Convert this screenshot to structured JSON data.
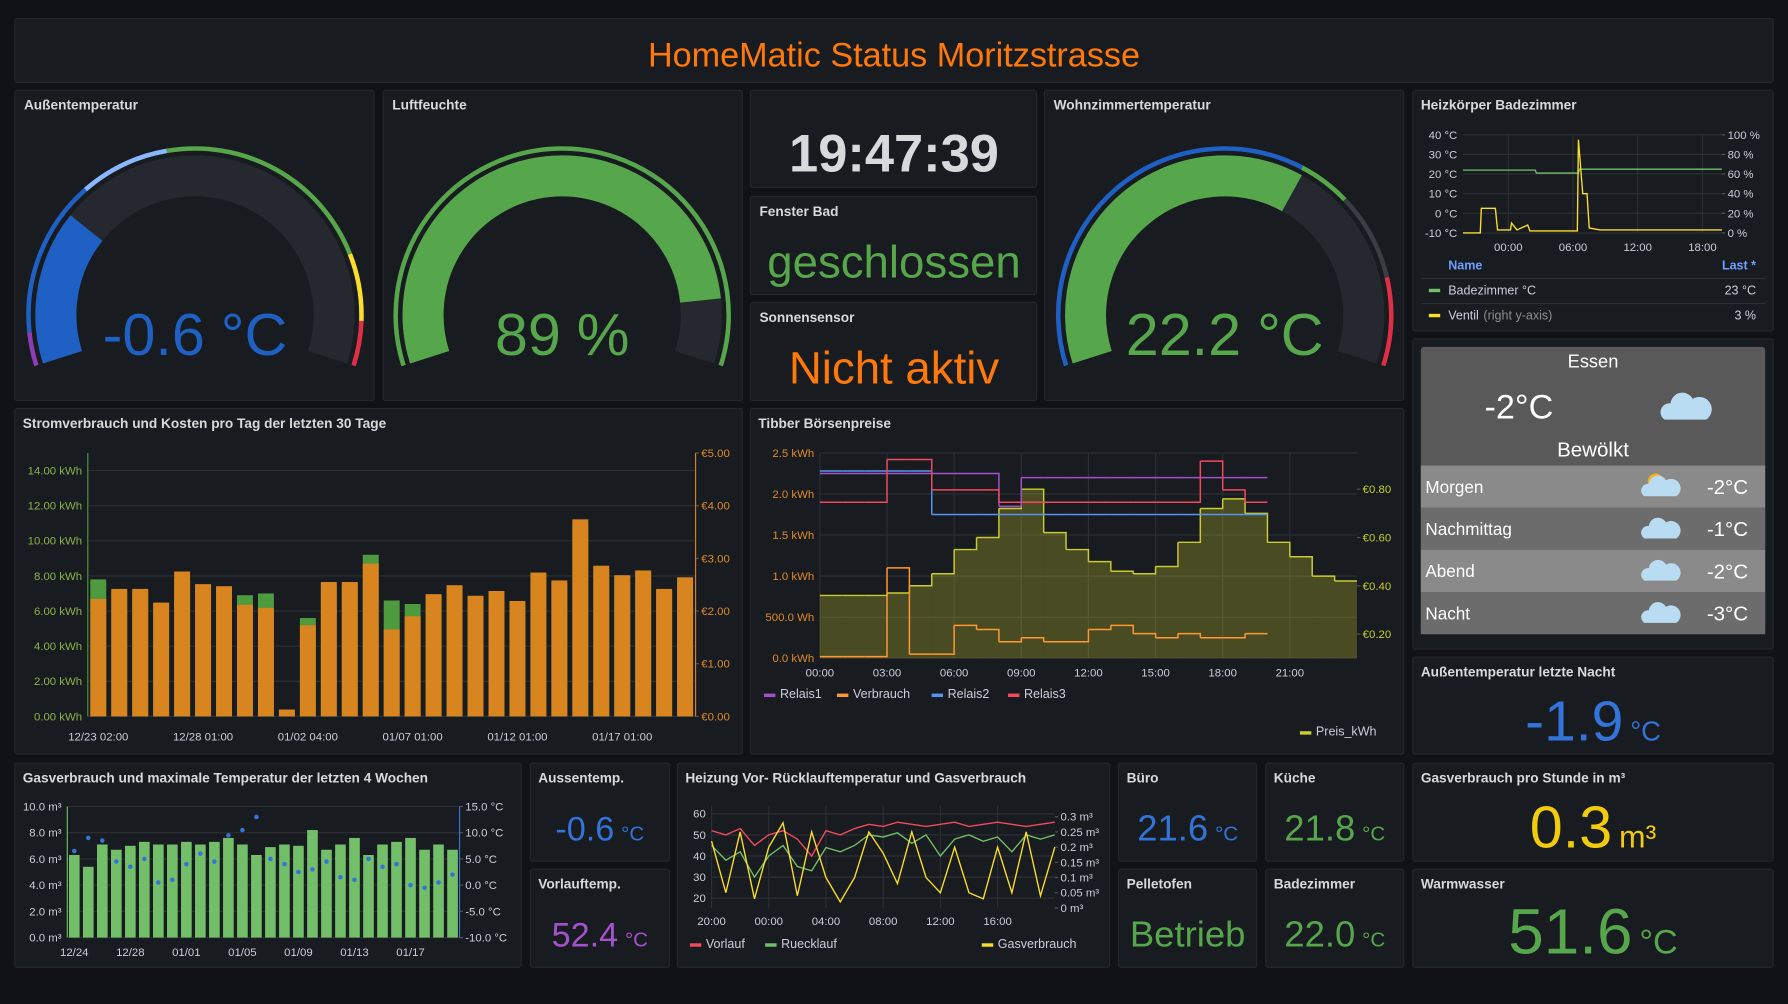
{
  "header": {
    "title": "HomeMatic Status Moritzstrasse"
  },
  "gauges": [
    {
      "title": "Außentemperatur",
      "value": -0.6,
      "unit": "°C",
      "min": -15,
      "max": 40,
      "thresholds": [
        {
          "from": -15,
          "color": "#8f3bb8"
        },
        {
          "from": -12,
          "color": "#1f60c4"
        },
        {
          "from": 2,
          "color": "#8ab8ff"
        },
        {
          "from": 10,
          "color": "#56a64b"
        },
        {
          "from": 30,
          "color": "#fade2a"
        },
        {
          "from": 36,
          "color": "#e02f44"
        }
      ]
    },
    {
      "title": "Luftfeuchte",
      "value": 89,
      "unit": "%",
      "min": 0,
      "max": 100,
      "thresholds": [
        {
          "from": 0,
          "color": "#56a64b"
        }
      ]
    },
    {
      "title": "Wohnzimmertemperatur",
      "value": 22.2,
      "unit": "°C",
      "min": 0,
      "max": 35,
      "thresholds": [
        {
          "from": 0,
          "color": "#1f60c4"
        },
        {
          "from": 22,
          "color": "#56a64b"
        },
        {
          "from": 25,
          "color": "#3a3d44"
        },
        {
          "from": 30,
          "color": "#e02f44"
        }
      ]
    }
  ],
  "clock": {
    "time": "19:47:39"
  },
  "states": [
    {
      "title": "Fenster Bad",
      "text": "geschlossen",
      "color": "#56a64b"
    },
    {
      "title": "Sonnensensor",
      "text": "Nicht aktiv",
      "color": "#ff780a"
    }
  ],
  "weather": {
    "city": "Essen",
    "temp": "-2°C",
    "condition": "Bewölkt",
    "forecast": [
      {
        "label": "Morgen",
        "temp": "-2°C"
      },
      {
        "label": "Nachmittag",
        "temp": "-1°C"
      },
      {
        "label": "Abend",
        "temp": "-2°C"
      },
      {
        "label": "Nacht",
        "temp": "-3°C"
      }
    ]
  },
  "stats": [
    {
      "title": "Außentemperatur letzte Nacht",
      "value": "-1.9",
      "unit": "°C",
      "color": "#3274d9"
    },
    {
      "title": "Aussentemp.",
      "value": "-0.6",
      "unit": "°C",
      "color": "#3274d9"
    },
    {
      "title": "Vorlauftemp.",
      "value": "52.4",
      "unit": "°C",
      "color": "#a352cc"
    },
    {
      "title": "Büro",
      "value": "21.6",
      "unit": "°C",
      "color": "#3274d9"
    },
    {
      "title": "Küche",
      "value": "21.8",
      "unit": "°C",
      "color": "#56a64b"
    },
    {
      "title": "Pelletofen",
      "value": "Betrieb",
      "color": "#56a64b"
    },
    {
      "title": "Badezimmer",
      "value": "22.0",
      "unit": "°C",
      "color": "#56a64b"
    },
    {
      "title": "Gasverbrauch pro Stunde in m³",
      "value": "0.3",
      "unit": "m³",
      "color": "#f2cc0c"
    },
    {
      "title": "Warmwasser",
      "value": "51.6",
      "unit": "°C",
      "color": "#56a64b"
    }
  ],
  "charts": {
    "heizkoerper": {
      "type": "line",
      "title": "Heizkörper Badezimmer",
      "xlim": [
        -4.2,
        19.8
      ],
      "xticks": [
        {
          "value": 0,
          "label": "00:00"
        },
        {
          "value": 6,
          "label": "06:00"
        },
        {
          "value": 12,
          "label": "12:00"
        },
        {
          "value": 18,
          "label": "18:00"
        }
      ],
      "ylim": [
        -10,
        40
      ],
      "yticks": [
        {
          "value": -10,
          "label": "-10 °C"
        },
        {
          "value": 0,
          "label": "0 °C"
        },
        {
          "value": 10,
          "label": "10 °C"
        },
        {
          "value": 20,
          "label": "20 °C"
        },
        {
          "value": 30,
          "label": "30 °C"
        },
        {
          "value": 40,
          "label": "40 °C"
        }
      ],
      "y2lim": [
        0,
        100
      ],
      "y2ticks": [
        {
          "value": 0,
          "label": "0 %"
        },
        {
          "value": 20,
          "label": "20 %"
        },
        {
          "value": 40,
          "label": "40 %"
        },
        {
          "value": 60,
          "label": "60 %"
        },
        {
          "value": 80,
          "label": "80 %"
        },
        {
          "value": 100,
          "label": "100 %"
        }
      ],
      "legend_header": {
        "name": "Name",
        "last": "Last *"
      },
      "series": [
        {
          "name": "Badezimmer °C",
          "color": "#73bf69",
          "last": "23 °C",
          "x": [
            -4.2,
            -2,
            0,
            2.5,
            2.6,
            6.5,
            6.6,
            9,
            12,
            15,
            19.8
          ],
          "values": [
            22,
            22,
            22,
            22,
            20.5,
            20.5,
            22.5,
            22.5,
            22.5,
            22.5,
            22.5
          ]
        },
        {
          "name": "Ventil",
          "axis_note": "(right y-axis)",
          "axis": "y2",
          "color": "#fade2a",
          "last": "3 %",
          "x": [
            -4.2,
            -2.6,
            -2.5,
            -1.2,
            -1,
            0.2,
            0.3,
            0.8,
            1.8,
            2,
            6.4,
            6.5,
            6.9,
            7.3,
            7.5,
            8.5,
            19.8
          ],
          "values": [
            0,
            0,
            25,
            25,
            3,
            3,
            10,
            3,
            8,
            2,
            2,
            95,
            40,
            40,
            5,
            3,
            3
          ]
        }
      ]
    },
    "strom": {
      "type": "bar",
      "title": "Stromverbrauch und Kosten pro Tag der letzten 30 Tage",
      "categories": [
        "12/23 02:00",
        null,
        null,
        null,
        null,
        "12/28 01:00",
        null,
        null,
        null,
        null,
        "01/02 04:00",
        null,
        null,
        null,
        null,
        "01/07 01:00",
        null,
        null,
        null,
        null,
        "01/12 01:00",
        null,
        null,
        null,
        null,
        "01/17 01:00",
        null,
        null,
        null
      ],
      "series": [
        {
          "color": "#4e9a3e",
          "values": [
            7.8,
            7.1,
            7.1,
            6.4,
            7.8,
            7.4,
            7.3,
            6.9,
            7.0,
            0.3,
            5.6,
            7.5,
            7.5,
            9.2,
            6.6,
            6.4,
            6.9,
            7.4,
            6.8,
            7.0,
            6.5,
            8.1,
            7.6,
            11.0,
            8.4,
            8.0,
            8.2,
            7.2,
            7.9
          ]
        },
        {
          "color": "#d8841f",
          "axis": "y2",
          "values": [
            2.23,
            2.42,
            2.42,
            2.16,
            2.75,
            2.51,
            2.47,
            2.12,
            2.06,
            0.13,
            1.73,
            2.55,
            2.55,
            2.9,
            1.65,
            1.9,
            2.32,
            2.49,
            2.29,
            2.38,
            2.19,
            2.73,
            2.58,
            3.74,
            2.86,
            2.68,
            2.77,
            2.42,
            2.64
          ]
        }
      ],
      "ylim": [
        0,
        15
      ],
      "yticks": [
        {
          "value": 0,
          "label": "0.00 kWh"
        },
        {
          "value": 2,
          "label": "2.00 kWh"
        },
        {
          "value": 4,
          "label": "4.00 kWh"
        },
        {
          "value": 6,
          "label": "6.00 kWh"
        },
        {
          "value": 8,
          "label": "8.00 kWh"
        },
        {
          "value": 10,
          "label": "10.00 kWh"
        },
        {
          "value": 12,
          "label": "12.00 kWh"
        },
        {
          "value": 14,
          "label": "14.00 kWh"
        }
      ],
      "y2lim": [
        0,
        5
      ],
      "y2ticks": [
        {
          "value": 0,
          "label": "€0.00"
        },
        {
          "value": 1,
          "label": "€1.00"
        },
        {
          "value": 2,
          "label": "€2.00"
        },
        {
          "value": 3,
          "label": "€3.00"
        },
        {
          "value": 4,
          "label": "€4.00"
        },
        {
          "value": 5,
          "label": "€5.00"
        }
      ]
    },
    "tibber": {
      "type": "line",
      "title": "Tibber Börsenpreise",
      "x": [
        0,
        1,
        2,
        3,
        4,
        5,
        6,
        7,
        8,
        9,
        10,
        11,
        12,
        13,
        14,
        15,
        16,
        17,
        18,
        19,
        20,
        21,
        22,
        23
      ],
      "xlim": [
        0,
        24
      ],
      "xticks": [
        {
          "value": 0,
          "label": "00:00"
        },
        {
          "value": 3,
          "label": "03:00"
        },
        {
          "value": 6,
          "label": "06:00"
        },
        {
          "value": 9,
          "label": "09:00"
        },
        {
          "value": 12,
          "label": "12:00"
        },
        {
          "value": 15,
          "label": "15:00"
        },
        {
          "value": 18,
          "label": "18:00"
        },
        {
          "value": 21,
          "label": "21:00"
        }
      ],
      "ylim": [
        0,
        2.5
      ],
      "yticks": [
        {
          "value": 0,
          "label": "0.0 kWh"
        },
        {
          "value": 0.5,
          "label": "500.0 Wh"
        },
        {
          "value": 1,
          "label": "1.0 kWh"
        },
        {
          "value": 1.5,
          "label": "1.5 kWh"
        },
        {
          "value": 2,
          "label": "2.0 kWh"
        },
        {
          "value": 2.5,
          "label": "2.5 kWh"
        }
      ],
      "y2lim": [
        0.1,
        0.95
      ],
      "y2ticks": [
        {
          "value": 0.2,
          "label": "€0.20"
        },
        {
          "value": 0.4,
          "label": "€0.40"
        },
        {
          "value": 0.6,
          "label": "€0.60"
        },
        {
          "value": 0.8,
          "label": "€0.80"
        }
      ],
      "series": [
        {
          "name": "Relais1",
          "color": "#a352cc",
          "style": "step",
          "values": [
            2.25,
            2.25,
            2.25,
            2.25,
            2.25,
            2.25,
            2.25,
            2.25,
            1.85,
            2.2,
            2.2,
            2.2,
            2.2,
            2.2,
            2.2,
            2.2,
            2.2,
            2.2,
            2.2,
            2.2,
            null,
            null,
            null,
            null
          ]
        },
        {
          "name": "Verbrauch",
          "color": "#ff9830",
          "style": "step",
          "values": [
            0.02,
            0.02,
            0.02,
            1.1,
            0.05,
            0.05,
            0.4,
            0.35,
            0.2,
            0.25,
            0.2,
            0.2,
            0.35,
            0.4,
            0.3,
            0.25,
            0.3,
            0.25,
            0.25,
            0.3,
            null,
            null,
            null,
            null
          ]
        },
        {
          "name": "Relais2",
          "color": "#5794f2",
          "style": "step",
          "values": [
            2.28,
            2.28,
            2.28,
            2.28,
            2.28,
            1.75,
            1.75,
            1.75,
            1.75,
            1.75,
            1.75,
            1.75,
            1.75,
            1.75,
            1.75,
            1.75,
            1.75,
            1.75,
            1.75,
            1.75,
            null,
            null,
            null,
            null
          ]
        },
        {
          "name": "Relais3",
          "color": "#f2495c",
          "style": "step",
          "values": [
            1.9,
            1.9,
            1.9,
            2.42,
            2.42,
            2.05,
            2.05,
            2.05,
            1.9,
            1.9,
            1.9,
            1.9,
            1.9,
            1.9,
            1.9,
            1.9,
            1.9,
            2.4,
            2.05,
            1.9,
            null,
            null,
            null,
            null
          ]
        },
        {
          "name": "Preis_kWh",
          "color": "#c9cc2e",
          "style": "area-step",
          "axis": "y2",
          "values": [
            0.36,
            0.36,
            0.36,
            0.37,
            0.4,
            0.45,
            0.55,
            0.6,
            0.72,
            0.8,
            0.62,
            0.55,
            0.5,
            0.46,
            0.45,
            0.48,
            0.58,
            0.72,
            0.76,
            0.7,
            0.58,
            0.52,
            0.44,
            0.42
          ]
        }
      ]
    },
    "gas": {
      "type": "bar",
      "title": "Gasverbrauch und maximale Temperatur der letzten 4 Wochen",
      "categories": [
        "12/24",
        null,
        null,
        null,
        "12/28",
        null,
        null,
        null,
        "01/01",
        null,
        null,
        null,
        "01/05",
        null,
        null,
        null,
        "01/09",
        null,
        null,
        null,
        "01/13",
        null,
        null,
        null,
        "01/17",
        null,
        null,
        null
      ],
      "series": [
        {
          "color": "#73bf69",
          "values": [
            6.3,
            5.4,
            7.1,
            6.7,
            7.0,
            7.3,
            7.1,
            7.1,
            7.3,
            7.1,
            7.3,
            7.6,
            7.1,
            6.3,
            6.9,
            7.1,
            7.0,
            8.2,
            6.7,
            7.1,
            7.6,
            6.3,
            7.1,
            7.3,
            7.6,
            6.7,
            7.1,
            6.7
          ]
        },
        {
          "color": "#3274d9",
          "axis": "y2",
          "style": "points",
          "values": [
            6.5,
            9,
            8.5,
            4.5,
            3.5,
            5,
            0.5,
            1,
            4,
            6,
            4.5,
            9.5,
            10.5,
            13,
            5,
            4,
            2.5,
            3,
            4.5,
            1.5,
            1,
            5,
            3.5,
            4,
            0,
            -0.5,
            0.5,
            2
          ]
        }
      ],
      "ylim": [
        0,
        10
      ],
      "yticks": [
        {
          "value": 0,
          "label": "0.0 m³"
        },
        {
          "value": 2,
          "label": "2.0 m³"
        },
        {
          "value": 4,
          "label": "4.0 m³"
        },
        {
          "value": 6,
          "label": "6.0 m³"
        },
        {
          "value": 8,
          "label": "8.0 m³"
        },
        {
          "value": 10,
          "label": "10.0 m³"
        }
      ],
      "y2lim": [
        -10,
        15
      ],
      "y2ticks": [
        {
          "value": -10,
          "label": "-10.0 °C"
        },
        {
          "value": -5,
          "label": "-5.0 °C"
        },
        {
          "value": 0,
          "label": "0.0 °C"
        },
        {
          "value": 5,
          "label": "5.0 °C"
        },
        {
          "value": 10,
          "label": "10.0 °C"
        },
        {
          "value": 15,
          "label": "15.0 °C"
        }
      ]
    },
    "heizung": {
      "type": "line",
      "title": "Heizung Vor- Rücklauftemperatur und Gasverbrauch",
      "x": [
        0,
        1,
        2,
        3,
        4,
        5,
        6,
        7,
        8,
        9,
        10,
        11,
        12,
        13,
        14,
        15,
        16,
        17,
        18,
        19,
        20,
        21,
        22,
        23,
        24
      ],
      "xlim": [
        0,
        24
      ],
      "xticks": [
        {
          "value": 0,
          "label": "20:00"
        },
        {
          "value": 4,
          "label": "00:00"
        },
        {
          "value": 8,
          "label": "04:00"
        },
        {
          "value": 12,
          "label": "08:00"
        },
        {
          "value": 16,
          "label": "12:00"
        },
        {
          "value": 20,
          "label": "16:00"
        }
      ],
      "ylim": [
        15.4,
        64
      ],
      "yticks": [
        20,
        30,
        40,
        50,
        60
      ],
      "y2lim": [
        0,
        0.3375
      ],
      "y2ticks": [
        {
          "value": 0,
          "label": "0 m³"
        },
        {
          "value": 0.05,
          "label": "0.05 m³"
        },
        {
          "value": 0.1,
          "label": "0.1 m³"
        },
        {
          "value": 0.15,
          "label": "0.15 m³"
        },
        {
          "value": 0.2,
          "label": "0.2 m³"
        },
        {
          "value": 0.25,
          "label": "0.25 m³"
        },
        {
          "value": 0.3,
          "label": "0.3 m³"
        }
      ],
      "series": [
        {
          "name": "Vorlauf",
          "color": "#f2495c",
          "values": [
            52,
            50,
            53,
            45,
            50,
            52,
            48,
            40,
            52,
            50,
            53,
            55,
            54,
            56,
            55,
            54,
            55,
            56,
            54,
            55,
            56,
            55,
            54,
            55,
            56
          ]
        },
        {
          "name": "Ruecklauf",
          "color": "#73bf69",
          "values": [
            45,
            38,
            42,
            30,
            40,
            45,
            35,
            33,
            44,
            42,
            45,
            50,
            49,
            51,
            46,
            50,
            40,
            48,
            50,
            47,
            49,
            42,
            50,
            48,
            50
          ]
        },
        {
          "name": "Gasverbrauch",
          "color": "#fade2a",
          "axis": "y2",
          "values": [
            0.22,
            0.05,
            0.25,
            0.03,
            0.2,
            0.28,
            0.04,
            0.25,
            0.1,
            0.02,
            0.1,
            0.25,
            0.18,
            0.08,
            0.25,
            0.1,
            0.05,
            0.2,
            0.05,
            0.03,
            0.2,
            0.05,
            0.25,
            0.04,
            0.2
          ]
        }
      ]
    }
  }
}
